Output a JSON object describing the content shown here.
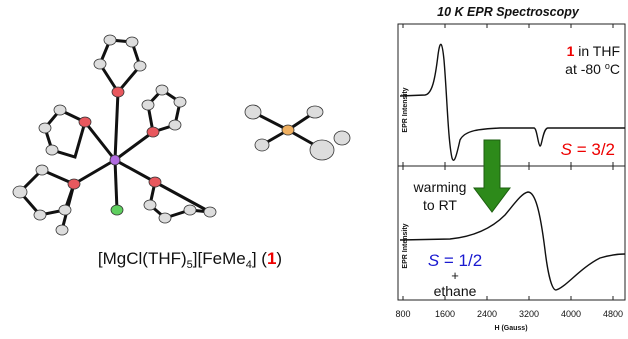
{
  "figure": {
    "caption": {
      "prefix": "[MgCl(THF)",
      "sub1": "5",
      "mid": "][FeMe",
      "sub2": "4",
      "suffix1": "] (",
      "compound": "1",
      "suffix2": ")"
    },
    "spectra": {
      "title": "10 K EPR Spectroscopy",
      "y_label": "EPR Intensity",
      "x_label": "H (Gauss)",
      "x_ticks": [
        "800",
        "1600",
        "2400",
        "3200",
        "4000",
        "4800"
      ],
      "top": {
        "compound": "1",
        "solvent": " in THF",
        "temp_prefix": "at -80 ",
        "degree": "o",
        "temp_unit": "C",
        "spin_symbol": "S",
        "spin_value": " = 3/2"
      },
      "bottom": {
        "y_label": "EPR Intensity",
        "warming_line1": "warming",
        "warming_line2": "to RT",
        "spin_symbol": "S",
        "spin_value": " = 1/2",
        "plus": "+",
        "product": "ethane"
      }
    }
  }
}
